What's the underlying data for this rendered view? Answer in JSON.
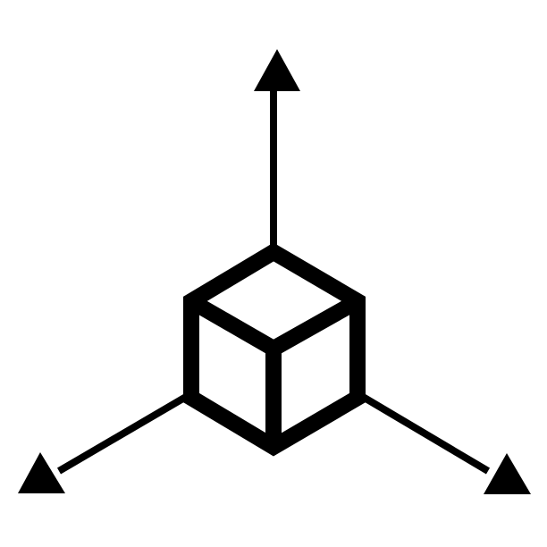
{
  "icon": {
    "name": "3d-axes-cube-icon",
    "stroke_color": "#000000",
    "background_color": "#ffffff"
  }
}
